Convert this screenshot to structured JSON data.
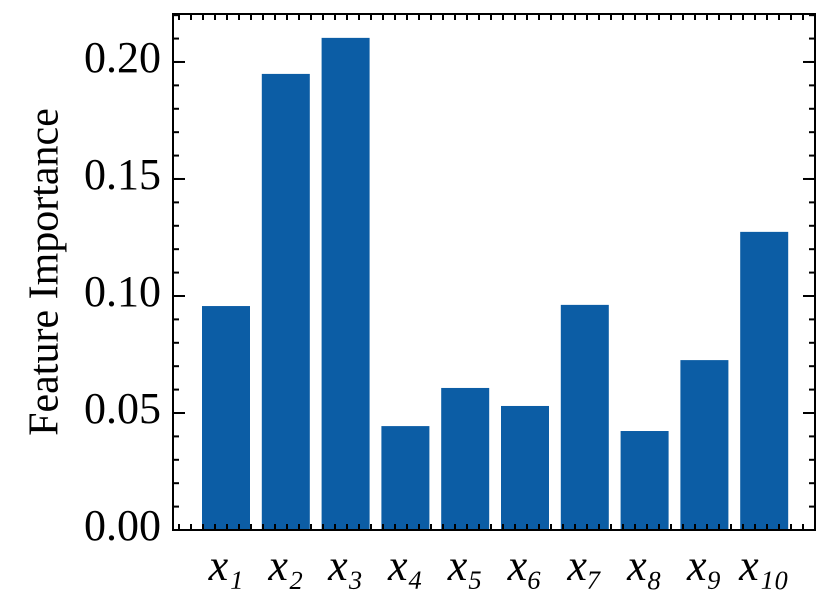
{
  "chart_data": {
    "type": "bar",
    "ylabel": "Feature Importance",
    "categories": [
      "x₁",
      "x₂",
      "x₃",
      "x₄",
      "x₅",
      "x₆",
      "x₇",
      "x₈",
      "x₉",
      "x₁₀"
    ],
    "values": [
      0.0957,
      0.1949,
      0.2103,
      0.0444,
      0.0607,
      0.053,
      0.0962,
      0.0423,
      0.0726,
      0.1274
    ],
    "color": "#0c5da5",
    "ylim": [
      0,
      0.2205
    ],
    "yticks": [
      {
        "value": 0,
        "label": "0.00"
      },
      {
        "value": 0.05,
        "label": "0.05"
      },
      {
        "value": 0.1,
        "label": "0.10"
      },
      {
        "value": 0.15,
        "label": "0.15"
      },
      {
        "value": 0.2,
        "label": "0.20"
      }
    ]
  }
}
